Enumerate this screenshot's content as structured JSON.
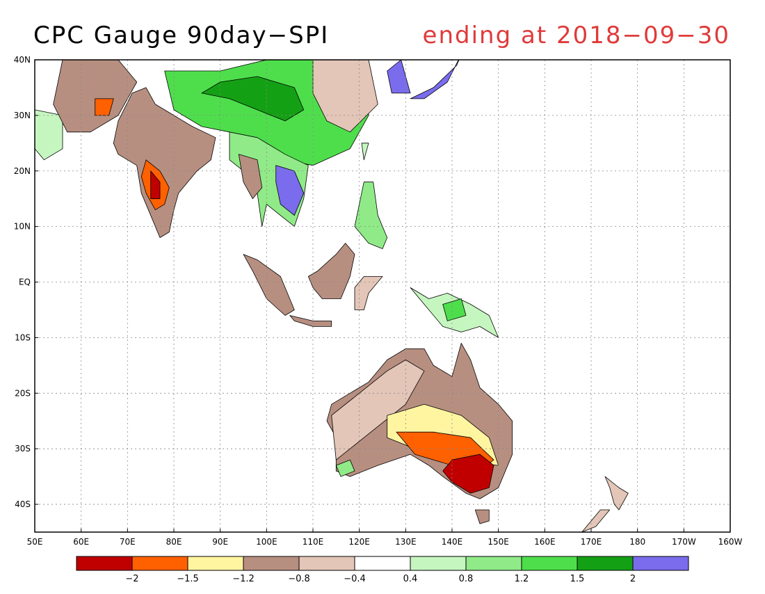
{
  "header": {
    "title": "CPC Gauge 90day−SPI",
    "subtitle": "ending at 2018−09−30",
    "subtitle_color": "#e03a3a"
  },
  "map": {
    "lon_range_deg": [
      50,
      200
    ],
    "lat_range_deg": [
      -45,
      40
    ],
    "lon_ticks": [
      {
        "value": 50,
        "label": "50E"
      },
      {
        "value": 60,
        "label": "60E"
      },
      {
        "value": 70,
        "label": "70E"
      },
      {
        "value": 80,
        "label": "80E"
      },
      {
        "value": 90,
        "label": "90E"
      },
      {
        "value": 100,
        "label": "100E"
      },
      {
        "value": 110,
        "label": "110E"
      },
      {
        "value": 120,
        "label": "120E"
      },
      {
        "value": 130,
        "label": "130E"
      },
      {
        "value": 140,
        "label": "140E"
      },
      {
        "value": 150,
        "label": "150E"
      },
      {
        "value": 160,
        "label": "160E"
      },
      {
        "value": 170,
        "label": "170E"
      },
      {
        "value": 180,
        "label": "180"
      },
      {
        "value": 190,
        "label": "170W"
      },
      {
        "value": 200,
        "label": "160W"
      }
    ],
    "lat_ticks": [
      {
        "value": 40,
        "label": "40N"
      },
      {
        "value": 30,
        "label": "30N"
      },
      {
        "value": 20,
        "label": "20N"
      },
      {
        "value": 10,
        "label": "10N"
      },
      {
        "value": 0,
        "label": "EQ"
      },
      {
        "value": -10,
        "label": "10S"
      },
      {
        "value": -20,
        "label": "20S"
      },
      {
        "value": -30,
        "label": "30S"
      },
      {
        "value": -40,
        "label": "40S"
      }
    ],
    "regions": [
      {
        "name": "india",
        "category": -0.8,
        "points": [
          [
            68,
            23
          ],
          [
            72,
            21
          ],
          [
            73,
            16
          ],
          [
            75,
            12
          ],
          [
            77,
            8
          ],
          [
            79,
            9
          ],
          [
            80,
            13
          ],
          [
            81,
            16
          ],
          [
            85,
            20
          ],
          [
            88,
            22
          ],
          [
            89,
            26
          ],
          [
            84,
            28
          ],
          [
            80,
            30
          ],
          [
            76,
            32
          ],
          [
            74,
            35
          ],
          [
            71,
            34
          ],
          [
            68,
            29
          ],
          [
            67,
            25
          ]
        ]
      },
      {
        "name": "india-dry-core",
        "category": -1.5,
        "points": [
          [
            74,
            22
          ],
          [
            77,
            20
          ],
          [
            79,
            17
          ],
          [
            78,
            14
          ],
          [
            76,
            13
          ],
          [
            74,
            16
          ],
          [
            73,
            19
          ]
        ]
      },
      {
        "name": "india-severe",
        "category": -2,
        "points": [
          [
            75,
            20
          ],
          [
            77,
            18
          ],
          [
            77,
            15
          ],
          [
            75,
            15
          ]
        ]
      },
      {
        "name": "tibet-china",
        "category": 1.2,
        "points": [
          [
            78,
            38
          ],
          [
            90,
            38
          ],
          [
            100,
            40
          ],
          [
            112,
            40
          ],
          [
            122,
            40
          ],
          [
            122,
            30
          ],
          [
            118,
            24
          ],
          [
            110,
            21
          ],
          [
            104,
            22
          ],
          [
            98,
            24
          ],
          [
            92,
            27
          ],
          [
            86,
            28
          ],
          [
            80,
            31
          ]
        ]
      },
      {
        "name": "tibet-wet",
        "category": 1.5,
        "points": [
          [
            86,
            34
          ],
          [
            92,
            33
          ],
          [
            98,
            31
          ],
          [
            104,
            29
          ],
          [
            108,
            31
          ],
          [
            106,
            35
          ],
          [
            98,
            37
          ],
          [
            90,
            36
          ]
        ]
      },
      {
        "name": "north-china-pink",
        "category": -0.4,
        "points": [
          [
            110,
            40
          ],
          [
            122,
            40
          ],
          [
            124,
            32
          ],
          [
            118,
            27
          ],
          [
            113,
            29
          ],
          [
            110,
            34
          ]
        ]
      },
      {
        "name": "se-asia",
        "category": 0.8,
        "points": [
          [
            92,
            27
          ],
          [
            98,
            26
          ],
          [
            104,
            23
          ],
          [
            109,
            21
          ],
          [
            108,
            15
          ],
          [
            106,
            10
          ],
          [
            103,
            12
          ],
          [
            100,
            14
          ],
          [
            99,
            10
          ],
          [
            98,
            16
          ],
          [
            95,
            20
          ],
          [
            92,
            22
          ]
        ]
      },
      {
        "name": "indochina-wet",
        "category": 2,
        "points": [
          [
            102,
            21
          ],
          [
            106,
            20
          ],
          [
            108,
            16
          ],
          [
            106,
            12
          ],
          [
            103,
            14
          ],
          [
            102,
            18
          ]
        ]
      },
      {
        "name": "myanmar-dry",
        "category": -0.8,
        "points": [
          [
            94,
            23
          ],
          [
            98,
            22
          ],
          [
            99,
            17
          ],
          [
            97,
            15
          ],
          [
            95,
            18
          ]
        ]
      },
      {
        "name": "korea-japan",
        "category": 2,
        "points": [
          [
            126,
            38
          ],
          [
            129,
            40
          ],
          [
            131,
            34
          ],
          [
            127,
            34
          ]
        ]
      },
      {
        "name": "japan",
        "category": 2,
        "points": [
          [
            131,
            33
          ],
          [
            136,
            35
          ],
          [
            141,
            39
          ],
          [
            142,
            41
          ],
          [
            139,
            36
          ],
          [
            134,
            33
          ]
        ]
      },
      {
        "name": "taiwan",
        "category": 0.4,
        "points": [
          [
            120.5,
            25
          ],
          [
            122,
            25
          ],
          [
            121,
            22
          ]
        ]
      },
      {
        "name": "philippines",
        "category": 0.8,
        "points": [
          [
            119,
            10
          ],
          [
            121,
            18
          ],
          [
            123,
            18
          ],
          [
            124,
            12
          ],
          [
            126,
            8
          ],
          [
            125,
            6
          ],
          [
            122,
            7
          ]
        ]
      },
      {
        "name": "malay-sumatra",
        "category": -0.8,
        "points": [
          [
            95,
            5
          ],
          [
            98,
            4
          ],
          [
            103,
            1
          ],
          [
            104,
            -1
          ],
          [
            106,
            -5
          ],
          [
            104,
            -6
          ],
          [
            100,
            -3
          ],
          [
            97,
            2
          ]
        ]
      },
      {
        "name": "borneo",
        "category": -0.8,
        "points": [
          [
            109,
            1
          ],
          [
            111,
            2
          ],
          [
            115,
            5
          ],
          [
            117,
            7
          ],
          [
            119,
            5
          ],
          [
            118,
            1
          ],
          [
            116,
            -3
          ],
          [
            112,
            -3
          ],
          [
            110,
            -1
          ]
        ]
      },
      {
        "name": "sulawesi",
        "category": -0.4,
        "points": [
          [
            119,
            -1
          ],
          [
            121,
            1
          ],
          [
            125,
            1
          ],
          [
            122,
            -2
          ],
          [
            121,
            -5
          ],
          [
            119,
            -5
          ]
        ]
      },
      {
        "name": "java",
        "category": -0.8,
        "points": [
          [
            105,
            -6
          ],
          [
            110,
            -7
          ],
          [
            114,
            -7
          ],
          [
            114,
            -8
          ],
          [
            110,
            -8
          ],
          [
            106,
            -7
          ]
        ]
      },
      {
        "name": "new-guinea",
        "category": 0.4,
        "points": [
          [
            131,
            -1
          ],
          [
            135,
            -3
          ],
          [
            139,
            -2
          ],
          [
            144,
            -4
          ],
          [
            148,
            -6
          ],
          [
            150,
            -10
          ],
          [
            146,
            -8
          ],
          [
            142,
            -9
          ],
          [
            138,
            -8
          ],
          [
            134,
            -4
          ]
        ]
      },
      {
        "name": "new-guinea-wet",
        "category": 1.2,
        "points": [
          [
            138,
            -4
          ],
          [
            142,
            -3
          ],
          [
            143,
            -6
          ],
          [
            139,
            -7
          ]
        ]
      },
      {
        "name": "australia",
        "category": -0.8,
        "points": [
          [
            114,
            -22
          ],
          [
            118,
            -20
          ],
          [
            122,
            -18
          ],
          [
            126,
            -14
          ],
          [
            130,
            -12
          ],
          [
            134,
            -12
          ],
          [
            136,
            -15
          ],
          [
            140,
            -17
          ],
          [
            142,
            -11
          ],
          [
            144,
            -14
          ],
          [
            146,
            -19
          ],
          [
            150,
            -22
          ],
          [
            153,
            -25
          ],
          [
            153,
            -31
          ],
          [
            150,
            -37
          ],
          [
            146,
            -39
          ],
          [
            143,
            -38
          ],
          [
            138,
            -35
          ],
          [
            135,
            -33
          ],
          [
            131,
            -31
          ],
          [
            124,
            -33
          ],
          [
            118,
            -35
          ],
          [
            115,
            -34
          ],
          [
            115,
            -28
          ],
          [
            113,
            -25
          ]
        ]
      },
      {
        "name": "australia-light",
        "category": -0.4,
        "points": [
          [
            114,
            -24
          ],
          [
            120,
            -20
          ],
          [
            126,
            -16
          ],
          [
            130,
            -14
          ],
          [
            134,
            -16
          ],
          [
            130,
            -22
          ],
          [
            124,
            -26
          ],
          [
            118,
            -30
          ],
          [
            115,
            -32
          ]
        ]
      },
      {
        "name": "australia-dry",
        "category": -1.2,
        "points": [
          [
            126,
            -24
          ],
          [
            134,
            -22
          ],
          [
            142,
            -24
          ],
          [
            148,
            -28
          ],
          [
            150,
            -33
          ],
          [
            140,
            -32
          ],
          [
            132,
            -30
          ],
          [
            126,
            -28
          ]
        ]
      },
      {
        "name": "australia-drier",
        "category": -1.5,
        "points": [
          [
            128,
            -27
          ],
          [
            136,
            -27
          ],
          [
            144,
            -28
          ],
          [
            149,
            -32
          ],
          [
            146,
            -34
          ],
          [
            140,
            -33
          ],
          [
            132,
            -31
          ]
        ]
      },
      {
        "name": "murray-darling",
        "category": -2,
        "points": [
          [
            140,
            -32
          ],
          [
            146,
            -31
          ],
          [
            149,
            -33
          ],
          [
            148,
            -37
          ],
          [
            144,
            -38
          ],
          [
            140,
            -36
          ],
          [
            138,
            -34
          ]
        ]
      },
      {
        "name": "sw-australia-wet",
        "category": 0.8,
        "points": [
          [
            115,
            -33
          ],
          [
            118,
            -32
          ],
          [
            119,
            -34
          ],
          [
            116,
            -35
          ]
        ]
      },
      {
        "name": "tasmania",
        "category": -0.8,
        "points": [
          [
            145,
            -41
          ],
          [
            148,
            -41
          ],
          [
            148,
            -43
          ],
          [
            146,
            -43.5
          ]
        ]
      },
      {
        "name": "new-zealand-n",
        "category": -0.4,
        "points": [
          [
            173,
            -35
          ],
          [
            176,
            -37
          ],
          [
            178,
            -38
          ],
          [
            176,
            -41
          ],
          [
            175,
            -40
          ],
          [
            174,
            -37
          ]
        ]
      },
      {
        "name": "new-zealand-s",
        "category": -0.4,
        "points": [
          [
            172,
            -41
          ],
          [
            174,
            -41
          ],
          [
            171,
            -44
          ],
          [
            168,
            -45
          ],
          [
            167,
            -46
          ],
          [
            170,
            -43
          ]
        ]
      },
      {
        "name": "arabia-edge",
        "category": 0.4,
        "points": [
          [
            50,
            31
          ],
          [
            56,
            30
          ],
          [
            56,
            24
          ],
          [
            52,
            22
          ],
          [
            50,
            24
          ]
        ]
      },
      {
        "name": "iran-pakistan",
        "category": -0.8,
        "points": [
          [
            56,
            40
          ],
          [
            68,
            40
          ],
          [
            72,
            36
          ],
          [
            68,
            30
          ],
          [
            62,
            27
          ],
          [
            57,
            27
          ],
          [
            54,
            32
          ]
        ]
      },
      {
        "name": "iran-severe",
        "category": -1.5,
        "points": [
          [
            63,
            33
          ],
          [
            67,
            33
          ],
          [
            66,
            30
          ],
          [
            63,
            30
          ]
        ]
      }
    ]
  },
  "colorbar": {
    "colors": [
      "#c00000",
      "#ff6000",
      "#fff5a0",
      "#b78f80",
      "#e3c6b8",
      "#ffffff",
      "#c6f6c0",
      "#90ea88",
      "#4ede4c",
      "#14a014",
      "#7a6cec"
    ],
    "labels": [
      "−2",
      "−1.5",
      "−1.2",
      "−0.8",
      "−0.4",
      "0.4",
      "0.8",
      "1.2",
      "1.5",
      "2"
    ]
  }
}
